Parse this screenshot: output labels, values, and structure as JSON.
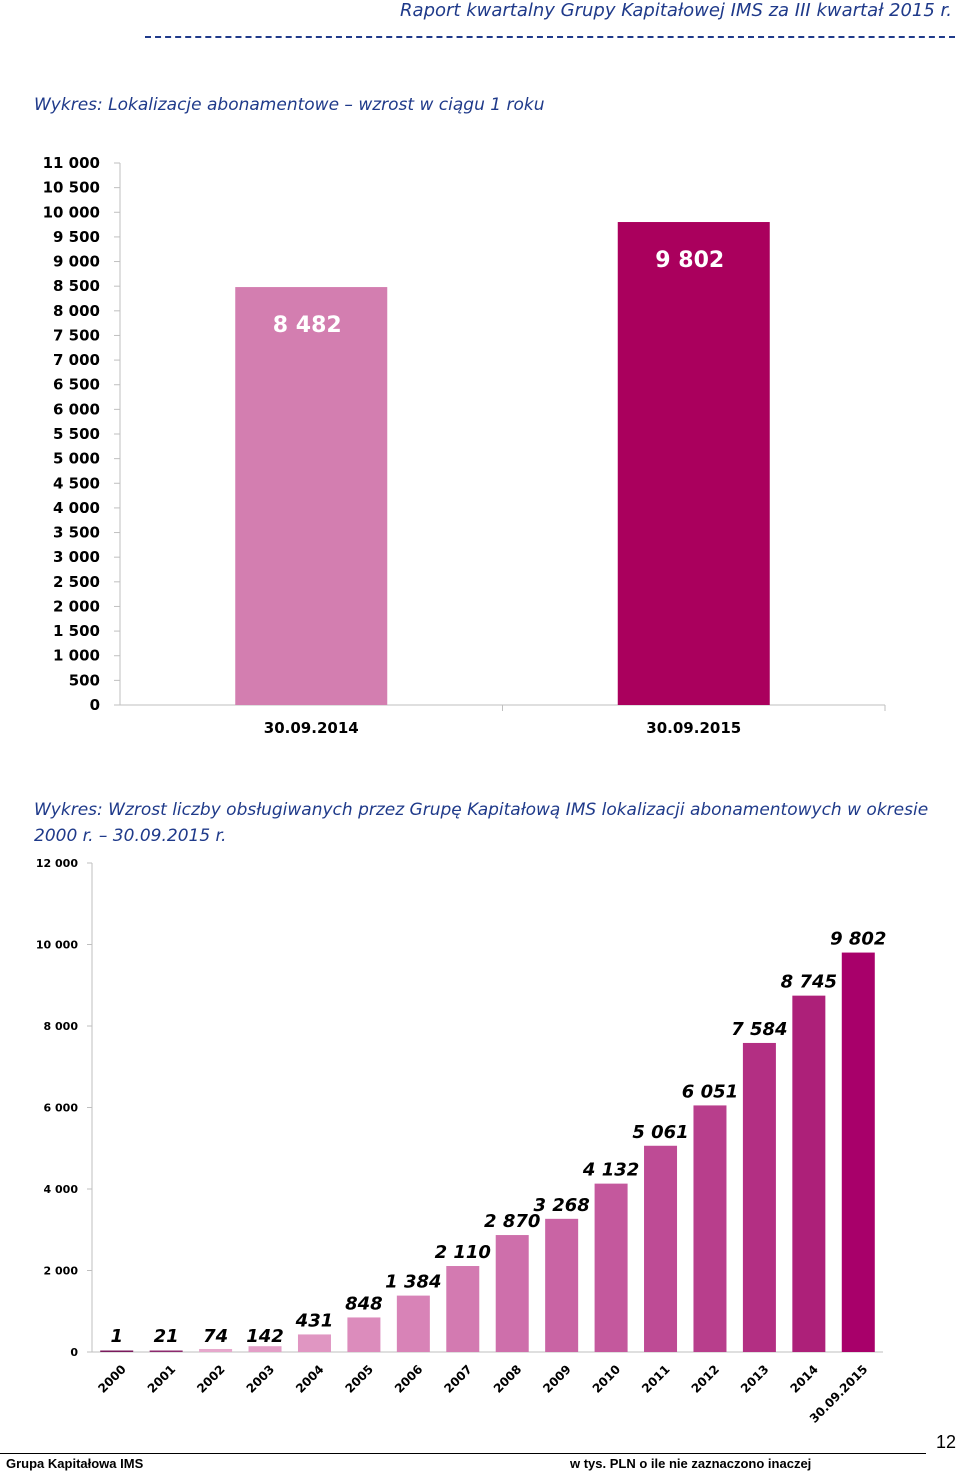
{
  "header": {
    "title": "Raport kwartalny Grupy Kapitałowej IMS za III kwartał 2015 r."
  },
  "captions": {
    "chart1": "Wykres: Lokalizacje abonamentowe – wzrost w ciągu 1 roku",
    "chart2": "Wykres: Wzrost liczby obsługiwanych przez Grupę Kapitałową IMS lokalizacji abonamentowych w okresie 2000 r. – 30.09.2015 r."
  },
  "chart_data": [
    {
      "type": "bar",
      "categories": [
        "30.09.2014",
        "30.09.2015"
      ],
      "values": [
        8482,
        9802
      ],
      "value_labels": [
        "8 482",
        "9 802"
      ],
      "colors": [
        "#d37eb0",
        "#aa005d"
      ],
      "ylim": [
        0,
        11000
      ],
      "yticks": [
        0,
        500,
        1000,
        1500,
        2000,
        2500,
        3000,
        3500,
        4000,
        4500,
        5000,
        5500,
        6000,
        6500,
        7000,
        7500,
        8000,
        8500,
        9000,
        9500,
        10000,
        10500,
        11000
      ],
      "ytick_labels": [
        "0",
        "500",
        "1 000",
        "1 500",
        "2 000",
        "2 500",
        "3 000",
        "3 500",
        "4 000",
        "4 500",
        "5 000",
        "5 500",
        "6 000",
        "6 500",
        "7 000",
        "7 500",
        "8 000",
        "8 500",
        "9 000",
        "9 500",
        "10 000",
        "10 500",
        "11 000"
      ],
      "grid": false
    },
    {
      "type": "bar",
      "categories": [
        "2000",
        "2001",
        "2002",
        "2003",
        "2004",
        "2005",
        "2006",
        "2007",
        "2008",
        "2009",
        "2010",
        "2011",
        "2012",
        "2013",
        "2014",
        "30.09.2015"
      ],
      "values": [
        1,
        21,
        74,
        142,
        431,
        848,
        1384,
        2110,
        2870,
        3268,
        4132,
        5061,
        6051,
        7584,
        8745,
        9802
      ],
      "value_labels": [
        "1",
        "21",
        "74",
        "142",
        "431",
        "848",
        "1 384",
        "2 110",
        "2 870",
        "3 268",
        "4 132",
        "5 061",
        "6 051",
        "7 584",
        "8 745",
        "9 802"
      ],
      "colors": [
        "#7a1a5c",
        "#8c2a6e",
        "#e6a8cc",
        "#e39fc7",
        "#e096c2",
        "#dc8cbc",
        "#d883b7",
        "#d37ab1",
        "#ce6fab",
        "#c964a4",
        "#c4589d",
        "#be4b95",
        "#b83e8c",
        "#b32f83",
        "#ad2079",
        "#a8006a"
      ],
      "ylim": [
        0,
        12000
      ],
      "yticks": [
        0,
        2000,
        4000,
        6000,
        8000,
        10000,
        12000
      ],
      "ytick_labels": [
        "0",
        "2 000",
        "4 000",
        "6 000",
        "8 000",
        "10 000",
        "12 000"
      ],
      "grid": false
    }
  ],
  "footer": {
    "left": "Grupa Kapitałowa IMS",
    "right": "w tys. PLN o ile nie zaznaczono inaczej",
    "page": "12"
  }
}
